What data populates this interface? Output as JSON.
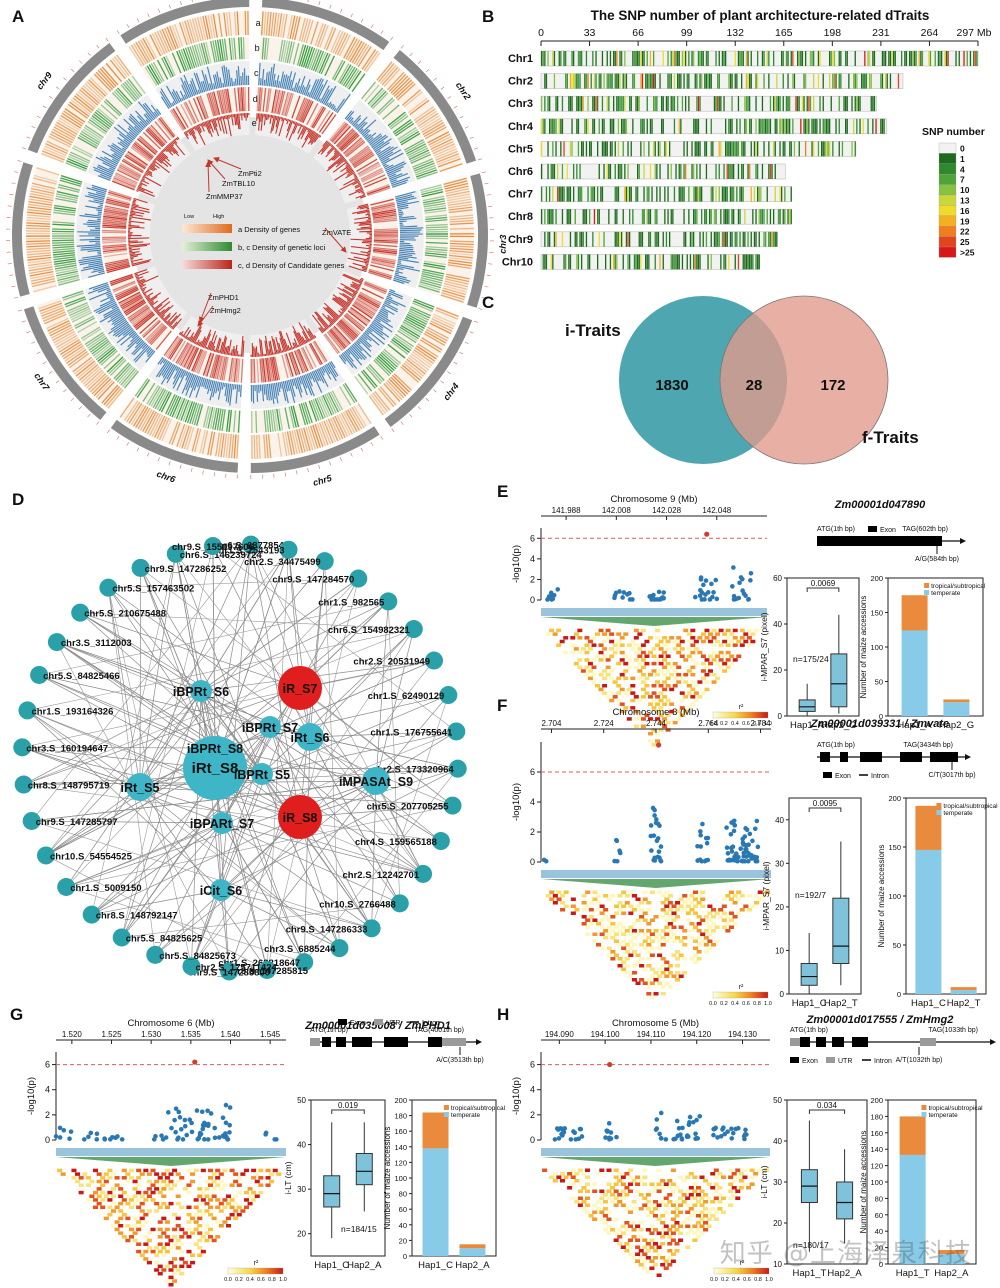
{
  "watermark": "知乎 @上海泽泉科技",
  "colors": {
    "orange": "#e98a3a",
    "green": "#2f9b3d",
    "blue": "#4b86b8",
    "red": "#c7352a",
    "teal": "#2aa0a8",
    "venn_left": "#4ea7b0",
    "venn_right": "#e19a8a",
    "bar_top": "#ea8a3c",
    "bar_bottom": "#87cbe8",
    "box_fill": "#7fc3db",
    "point": "#2a78b3",
    "lead": "#d23b2f"
  },
  "panel_labels": [
    "A",
    "B",
    "C",
    "D",
    "E",
    "F",
    "G",
    "H"
  ],
  "panelA": {
    "chromosomes": [
      "chr1",
      "chr2",
      "chr3",
      "chr4",
      "chr5",
      "chr6",
      "chr7",
      "chr8",
      "chr9",
      "chr10"
    ],
    "track_letters": [
      "a",
      "b",
      "c",
      "d",
      "e"
    ],
    "genes": [
      "ZmPti2",
      "ZmTBL10",
      "ZmMMP37",
      "ZmVATE",
      "ZmPHD1",
      "ZmHmg2"
    ],
    "legend": [
      "a Density of genes",
      "b, c Density of genetic loci",
      "c, d Density of Candidate genes"
    ],
    "low": "Low",
    "high": "High"
  },
  "chart_data": [
    {
      "type": "heatmap",
      "title": "The SNP number of plant architecture-related dTraits",
      "xlabel": "Mb",
      "x_ticks": [
        "0",
        "33",
        "66",
        "99",
        "132",
        "165",
        "198",
        "231",
        "264",
        "297 Mb"
      ],
      "x_tick_values": [
        0,
        33,
        66,
        99,
        132,
        165,
        198,
        231,
        264,
        297
      ],
      "categories": [
        "Chr1",
        "Chr2",
        "Chr3",
        "Chr4",
        "Chr5",
        "Chr6",
        "Chr7",
        "Chr8",
        "Chr9",
        "Chr10"
      ],
      "lengths": [
        297,
        246,
        228,
        235,
        214,
        166,
        170,
        170,
        160,
        148
      ],
      "legend_title": "SNP number",
      "legend_levels": [
        "0",
        "1",
        "4",
        "7",
        "10",
        "13",
        "16",
        "19",
        "22",
        "25",
        ">25"
      ],
      "legend_colors": [
        "#f2f2f2",
        "#1d6b1d",
        "#2f8a2f",
        "#4ea43a",
        "#88c040",
        "#c8d83a",
        "#f0dc28",
        "#f3b020",
        "#ee7f1c",
        "#e3431d",
        "#d81818"
      ]
    },
    {
      "type": "venn",
      "sets": [
        {
          "name": "i-Traits",
          "only": 1830
        },
        {
          "name": "f-Traits",
          "only": 172
        }
      ],
      "intersection": 28
    },
    {
      "type": "network",
      "hubs": [
        {
          "label": "iRt_S8",
          "color": "teal",
          "size": "xl"
        },
        {
          "label": "iR_S7",
          "color": "red",
          "size": "l"
        },
        {
          "label": "iR_S8",
          "color": "red",
          "size": "l"
        },
        {
          "label": "iRt_S5",
          "color": "teal",
          "size": "m"
        },
        {
          "label": "iRt_S6",
          "color": "teal",
          "size": "m"
        },
        {
          "label": "iMPASAt_S9",
          "color": "teal",
          "size": "m"
        },
        {
          "label": "iBPRt_S6",
          "color": "teal",
          "size": "s"
        },
        {
          "label": "iBPRt_S7",
          "color": "teal",
          "size": "s"
        },
        {
          "label": "iBPRt_S8",
          "color": "teal",
          "size": "s"
        },
        {
          "label": "iBPRt_S5",
          "color": "teal",
          "size": "s"
        },
        {
          "label": "iBPARt_S7",
          "color": "teal",
          "size": "s"
        },
        {
          "label": "iCit_S6",
          "color": "teal",
          "size": "s"
        }
      ],
      "outer": [
        "chr6.S_68778544",
        "chr1.S_2543193",
        "chr2.S_34475499",
        "chr9.S_147284570",
        "chr1.S_982565",
        "chr6.S_154982321",
        "chr2.S_20531949",
        "chr1.S_62490129",
        "chr1.S_176755641",
        "chr2.S_173320964",
        "chr5.S_207705255",
        "chr4.S_159565188",
        "chr2.S_12242701",
        "chr10.S_2766488",
        "chr9.S_147286333",
        "chr3.S_6885244",
        "chr1.S_262818647",
        "chr9.S_147285815",
        "chr9.S_147285800",
        "chr2.S_175711424",
        "chr5.S_84825673",
        "chr5.S_84825625",
        "chr8.S_148792147",
        "chr1.S_5009150",
        "chr10.S_54554525",
        "chr9.S_147285797",
        "chr8.S_148795719",
        "chr3.S_160194647",
        "chr1.S_193164326",
        "chr5.S_84825466",
        "chr3.S_3112003",
        "chr5.S_210675488",
        "chr5.S_157463502",
        "chr9.S_147286252",
        "chr6.S_146239724",
        "chr9.S_155097606"
      ]
    },
    {
      "type": "scatter",
      "panel": "E",
      "chromosome_title": "Chromosome 9 (Mb)",
      "x_ticks": [
        "141.988",
        "142.008",
        "142.028",
        "142.048"
      ],
      "xlim": [
        141.978,
        142.068
      ],
      "ylim": [
        0,
        7
      ],
      "y_ticks": [
        0,
        2,
        4,
        6
      ],
      "threshold": 6,
      "ylabel": "-log10(p)",
      "lead": {
        "x": 142.044,
        "y": 6.4
      },
      "gene": "Zm00001d047890",
      "gene_labels": {
        "start": "ATG(1th bp)",
        "end": "TAG(602th bp)",
        "snp": "A/G(584th bp)",
        "legend": [
          "Exon"
        ]
      },
      "box": {
        "ylabel": "i-MPAR_S7 (pixel)",
        "ylim": [
          0,
          60
        ],
        "y_ticks": [
          0,
          20,
          40,
          60
        ],
        "p": "0.0069",
        "n": "n=175/24",
        "groups": [
          {
            "name": "Hap1_A",
            "min": 0,
            "q1": 2,
            "med": 4,
            "q3": 7,
            "max": 14
          },
          {
            "name": "Hap2_G",
            "min": 1,
            "q1": 4,
            "med": 14,
            "q3": 27,
            "max": 44
          }
        ]
      },
      "bar": {
        "ylabel": "Number of maize accessions",
        "ylim": [
          0,
          200
        ],
        "y_ticks": [
          0,
          50,
          100,
          150,
          200
        ],
        "series": [
          {
            "name": "temperate",
            "values": [
              124,
              20
            ]
          },
          {
            "name": "tropical/subtropical",
            "values": [
              51,
              4
            ]
          }
        ]
      }
    },
    {
      "type": "scatter",
      "panel": "F",
      "chromosome_title": "Chromosome 3 (Mb)",
      "x_ticks": [
        "2.704",
        "2.724",
        "2.744",
        "2.764",
        "2.784"
      ],
      "xlim": [
        2.7,
        2.788
      ],
      "ylim": [
        0,
        8
      ],
      "y_ticks": [
        0,
        2,
        4,
        6
      ],
      "threshold": 6,
      "ylabel": "-log10(p)",
      "lead": {
        "x": 2.745,
        "y": 7.8
      },
      "gene": "Zm00001d039331 / Zmvate",
      "gene_labels": {
        "start": "ATG(1th bp)",
        "end": "TAG(3434th bp)",
        "snp": "C/T(3017th bp)",
        "legend": [
          "Exon",
          "Intron"
        ]
      },
      "box": {
        "ylabel": "i-MPAR_S7 (pixel)",
        "ylim": [
          0,
          45
        ],
        "y_ticks": [
          0,
          10,
          20,
          30,
          40
        ],
        "p": "0.0095",
        "n": "n=192/7",
        "groups": [
          {
            "name": "Hap1_C",
            "min": 0,
            "q1": 2,
            "med": 4,
            "q3": 7,
            "max": 14
          },
          {
            "name": "Hap2_T",
            "min": 2,
            "q1": 7,
            "med": 11,
            "q3": 22,
            "max": 35
          }
        ]
      },
      "bar": {
        "ylabel": "Number of maize accessions",
        "ylim": [
          0,
          200
        ],
        "y_ticks": [
          0,
          50,
          100,
          150,
          200
        ],
        "series": [
          {
            "name": "temperate",
            "values": [
              147,
              4
            ]
          },
          {
            "name": "tropical/subtropical",
            "values": [
              45,
              3
            ]
          }
        ]
      }
    },
    {
      "type": "scatter",
      "panel": "G",
      "chromosome_title": "Chromosome 6 (Mb)",
      "x_ticks": [
        "1.520",
        "1.525",
        "1.530",
        "1.535",
        "1.540",
        "1.545"
      ],
      "xlim": [
        1.518,
        1.547
      ],
      "ylim": [
        0,
        7
      ],
      "y_ticks": [
        0,
        2,
        4,
        6
      ],
      "threshold": 6,
      "ylabel": "-log10(p)",
      "lead": {
        "x": 1.5355,
        "y": 6.2
      },
      "gene": "Zm00001d035008 / ZmPHD1",
      "gene_labels": {
        "start": "ATG(1th bp)",
        "end": "TAG(4001th bp)",
        "snp": "A/C(3513th bp)",
        "legend": [
          "Exon",
          "UTR",
          "Intron"
        ]
      },
      "box": {
        "ylabel": "i-LT (cm)",
        "ylim": [
          15,
          50
        ],
        "y_ticks": [
          20,
          30,
          40,
          50
        ],
        "p": "0.019",
        "n": "n=184/15",
        "groups": [
          {
            "name": "Hap1_C",
            "min": 19,
            "q1": 26,
            "med": 29,
            "q3": 33,
            "max": 45
          },
          {
            "name": "Hap2_A",
            "min": 25,
            "q1": 31,
            "med": 34,
            "q3": 38,
            "max": 45
          }
        ]
      },
      "bar": {
        "ylabel": "Number of maize accessions",
        "ylim": [
          0,
          200
        ],
        "y_ticks": [
          0,
          20,
          40,
          60,
          80,
          100,
          120,
          140,
          160,
          180,
          200
        ],
        "series": [
          {
            "name": "temperate",
            "values": [
              138,
              10
            ]
          },
          {
            "name": "tropical/subtropical",
            "values": [
              46,
              5
            ]
          }
        ]
      }
    },
    {
      "type": "scatter",
      "panel": "H",
      "chromosome_title": "Chromosome 5 (Mb)",
      "x_ticks": [
        "194.090",
        "194.100",
        "194.110",
        "194.120",
        "194.130"
      ],
      "xlim": [
        194.086,
        194.136
      ],
      "ylim": [
        0,
        7
      ],
      "y_ticks": [
        0,
        2,
        4,
        6
      ],
      "threshold": 6,
      "ylabel": "-log10(p)",
      "lead": {
        "x": 194.101,
        "y": 6.0
      },
      "gene": "Zm00001d017555 / ZmHmg2",
      "gene_labels": {
        "start": "ATG(1th bp)",
        "end": "TAG(1033th bp)",
        "snp": "A/T(1032th bp)",
        "legend": [
          "Exon",
          "UTR",
          "Intron"
        ]
      },
      "box": {
        "ylabel": "i-LT (cm)",
        "ylim": [
          10,
          50
        ],
        "y_ticks": [
          10,
          20,
          30,
          40,
          50
        ],
        "p": "0.034",
        "n": "n=180/17",
        "groups": [
          {
            "name": "Hap1_T",
            "min": 13,
            "q1": 25,
            "med": 29,
            "q3": 33,
            "max": 45
          },
          {
            "name": "Hap2_A",
            "min": 15,
            "q1": 21,
            "med": 25,
            "q3": 30,
            "max": 38
          }
        ]
      },
      "bar": {
        "ylabel": "Number of maize accessions",
        "ylim": [
          0,
          200
        ],
        "y_ticks": [
          0,
          20,
          40,
          60,
          80,
          100,
          120,
          140,
          160,
          180,
          200
        ],
        "series": [
          {
            "name": "temperate",
            "values": [
              133,
              12
            ]
          },
          {
            "name": "tropical/subtropical",
            "values": [
              47,
              5
            ]
          }
        ]
      }
    }
  ],
  "ld_legend": {
    "label": "r²",
    "ticks": [
      "0.0",
      "0.2",
      "0.4",
      "0.6",
      "0.8",
      "1.0"
    ]
  }
}
